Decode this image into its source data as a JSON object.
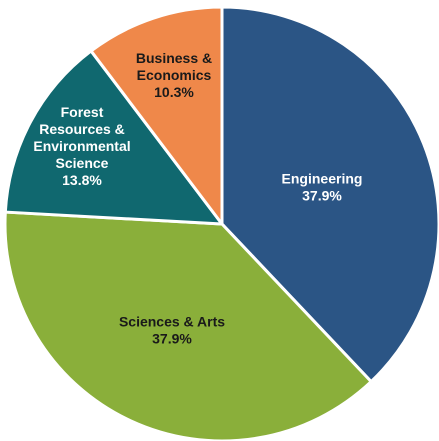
{
  "chart_data": {
    "type": "pie",
    "title": "",
    "slices": [
      {
        "label": [
          "Engineering"
        ],
        "value": 37.9,
        "value_label": "37.9%",
        "color": "#2b5585",
        "text_color": "#ffffff"
      },
      {
        "label": [
          "Sciences & Arts"
        ],
        "value": 37.9,
        "value_label": "37.9%",
        "color": "#8aaf3a",
        "text_color": "#1a1a1a"
      },
      {
        "label": [
          "Forest",
          "Resources &",
          "Environmental",
          "Science"
        ],
        "value": 13.8,
        "value_label": "13.8%",
        "color": "#10686f",
        "text_color": "#ffffff"
      },
      {
        "label": [
          "Business &",
          "Economics"
        ],
        "value": 10.3,
        "value_label": "10.3%",
        "color": "#ef884a",
        "text_color": "#1a1a1a"
      }
    ],
    "start_angle": "top",
    "direction": "clockwise",
    "legend": "none",
    "border_color": "#ffffff"
  }
}
